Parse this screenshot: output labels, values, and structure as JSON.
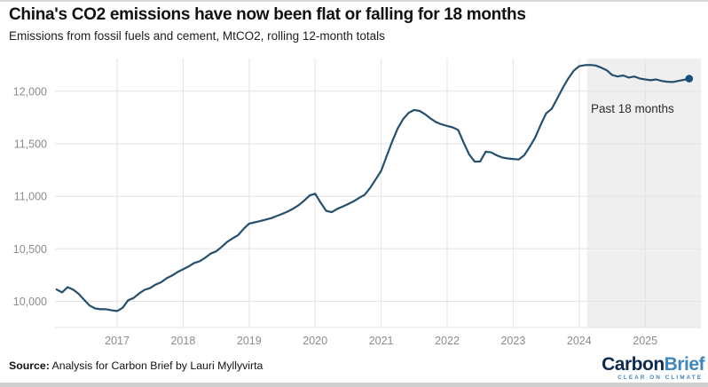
{
  "header": {
    "title": "China's CO2 emissions have now been flat or falling for 18 months",
    "subtitle": "Emissions from fossil fuels and cement, MtCO2, rolling 12-month totals"
  },
  "chart_data": {
    "type": "line",
    "title": "China's CO2 emissions have now been flat or falling for 18 months",
    "subtitle": "Emissions from fossil fuels and cement, MtCO2, rolling 12-month totals",
    "xlabel": "",
    "ylabel": "MtCO2, rolling 12-month totals",
    "xlim": [
      2016.05,
      2025.84
    ],
    "ylim": [
      9750,
      12310
    ],
    "grid": true,
    "legend": "none",
    "grid_color": "#e3e3e3",
    "tick_color": "#8c8c8c",
    "line_color": "#24506e",
    "dot_color": "#1d4e79",
    "background": "#ffffff",
    "y_ticks": [
      {
        "value": 10000,
        "label": "10,000"
      },
      {
        "value": 10500,
        "label": "10,500"
      },
      {
        "value": 11000,
        "label": "11,000"
      },
      {
        "value": 11500,
        "label": "11,500"
      },
      {
        "value": 12000,
        "label": "12,000"
      }
    ],
    "x_ticks": [
      {
        "value": 2017,
        "label": "2017"
      },
      {
        "value": 2018,
        "label": "2018"
      },
      {
        "value": 2019,
        "label": "2019"
      },
      {
        "value": 2020,
        "label": "2020"
      },
      {
        "value": 2021,
        "label": "2021"
      },
      {
        "value": 2022,
        "label": "2022"
      },
      {
        "value": 2023,
        "label": "2023"
      },
      {
        "value": 2024,
        "label": "2024"
      },
      {
        "value": 2025,
        "label": "2025"
      }
    ],
    "highlight_region": {
      "label": "Past 18 months",
      "x_start": 2024.12,
      "x_end": 2025.84,
      "color": "#efefef"
    },
    "end_dot": true,
    "series": [
      {
        "name": "China CO2 emissions (MtCO2, rolling 12-month total)",
        "points": [
          [
            "2016-02",
            10112
          ],
          [
            "2016-03",
            10085
          ],
          [
            "2016-04",
            10135
          ],
          [
            "2016-05",
            10112
          ],
          [
            "2016-06",
            10072
          ],
          [
            "2016-07",
            10015
          ],
          [
            "2016-08",
            9960
          ],
          [
            "2016-09",
            9932
          ],
          [
            "2016-10",
            9925
          ],
          [
            "2016-11",
            9925
          ],
          [
            "2016-12",
            9915
          ],
          [
            "2017-01",
            9908
          ],
          [
            "2017-02",
            9938
          ],
          [
            "2017-03",
            10010
          ],
          [
            "2017-04",
            10032
          ],
          [
            "2017-05",
            10075
          ],
          [
            "2017-06",
            10110
          ],
          [
            "2017-07",
            10126
          ],
          [
            "2017-08",
            10160
          ],
          [
            "2017-09",
            10182
          ],
          [
            "2017-10",
            10220
          ],
          [
            "2017-11",
            10246
          ],
          [
            "2017-12",
            10280
          ],
          [
            "2018-01",
            10305
          ],
          [
            "2018-02",
            10332
          ],
          [
            "2018-03",
            10365
          ],
          [
            "2018-04",
            10382
          ],
          [
            "2018-05",
            10415
          ],
          [
            "2018-06",
            10455
          ],
          [
            "2018-07",
            10476
          ],
          [
            "2018-08",
            10518
          ],
          [
            "2018-09",
            10565
          ],
          [
            "2018-10",
            10600
          ],
          [
            "2018-11",
            10630
          ],
          [
            "2018-12",
            10690
          ],
          [
            "2019-01",
            10740
          ],
          [
            "2019-02",
            10752
          ],
          [
            "2019-03",
            10764
          ],
          [
            "2019-04",
            10778
          ],
          [
            "2019-05",
            10792
          ],
          [
            "2019-06",
            10812
          ],
          [
            "2019-07",
            10832
          ],
          [
            "2019-08",
            10854
          ],
          [
            "2019-09",
            10882
          ],
          [
            "2019-10",
            10915
          ],
          [
            "2019-11",
            10958
          ],
          [
            "2019-12",
            11008
          ],
          [
            "2020-01",
            11025
          ],
          [
            "2020-02",
            10940
          ],
          [
            "2020-03",
            10862
          ],
          [
            "2020-04",
            10848
          ],
          [
            "2020-05",
            10880
          ],
          [
            "2020-06",
            10902
          ],
          [
            "2020-07",
            10926
          ],
          [
            "2020-08",
            10952
          ],
          [
            "2020-09",
            10985
          ],
          [
            "2020-10",
            11015
          ],
          [
            "2020-11",
            11080
          ],
          [
            "2020-12",
            11160
          ],
          [
            "2021-01",
            11242
          ],
          [
            "2021-02",
            11382
          ],
          [
            "2021-03",
            11520
          ],
          [
            "2021-04",
            11645
          ],
          [
            "2021-05",
            11735
          ],
          [
            "2021-06",
            11795
          ],
          [
            "2021-07",
            11822
          ],
          [
            "2021-08",
            11812
          ],
          [
            "2021-09",
            11780
          ],
          [
            "2021-10",
            11740
          ],
          [
            "2021-11",
            11705
          ],
          [
            "2021-12",
            11685
          ],
          [
            "2022-01",
            11670
          ],
          [
            "2022-02",
            11656
          ],
          [
            "2022-03",
            11632
          ],
          [
            "2022-04",
            11511
          ],
          [
            "2022-05",
            11398
          ],
          [
            "2022-06",
            11330
          ],
          [
            "2022-07",
            11332
          ],
          [
            "2022-08",
            11425
          ],
          [
            "2022-09",
            11418
          ],
          [
            "2022-10",
            11390
          ],
          [
            "2022-11",
            11370
          ],
          [
            "2022-12",
            11360
          ],
          [
            "2023-01",
            11355
          ],
          [
            "2023-02",
            11350
          ],
          [
            "2023-03",
            11390
          ],
          [
            "2023-04",
            11470
          ],
          [
            "2023-05",
            11560
          ],
          [
            "2023-06",
            11680
          ],
          [
            "2023-07",
            11790
          ],
          [
            "2023-08",
            11832
          ],
          [
            "2023-09",
            11930
          ],
          [
            "2023-10",
            12030
          ],
          [
            "2023-11",
            12120
          ],
          [
            "2023-12",
            12195
          ],
          [
            "2024-01",
            12238
          ],
          [
            "2024-02",
            12248
          ],
          [
            "2024-03",
            12250
          ],
          [
            "2024-04",
            12245
          ],
          [
            "2024-05",
            12225
          ],
          [
            "2024-06",
            12200
          ],
          [
            "2024-07",
            12155
          ],
          [
            "2024-08",
            12140
          ],
          [
            "2024-09",
            12150
          ],
          [
            "2024-10",
            12130
          ],
          [
            "2024-11",
            12140
          ],
          [
            "2024-12",
            12122
          ],
          [
            "2025-01",
            12112
          ],
          [
            "2025-02",
            12105
          ],
          [
            "2025-03",
            12112
          ],
          [
            "2025-04",
            12098
          ],
          [
            "2025-05",
            12090
          ],
          [
            "2025-06",
            12088
          ],
          [
            "2025-07",
            12098
          ],
          [
            "2025-08",
            12108
          ],
          [
            "2025-09",
            12120
          ]
        ]
      }
    ]
  },
  "footer": {
    "source_label": "Source:",
    "source_text": " Analysis for Carbon Brief by Lauri Myllyvirta",
    "logo": {
      "part1": "Carbon",
      "part2": "Brief",
      "tagline": "CLEAR ON CLIMATE",
      "color_dark": "#0d2b4f",
      "color_blue": "#3e86c0"
    }
  }
}
